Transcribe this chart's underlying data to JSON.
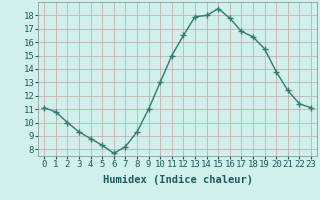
{
  "x": [
    0,
    1,
    2,
    3,
    4,
    5,
    6,
    7,
    8,
    9,
    10,
    11,
    12,
    13,
    14,
    15,
    16,
    17,
    18,
    19,
    20,
    21,
    22,
    23
  ],
  "y": [
    11.1,
    10.8,
    10.0,
    9.3,
    8.8,
    8.3,
    7.7,
    8.2,
    9.3,
    11.0,
    13.0,
    15.0,
    16.5,
    17.9,
    18.0,
    18.5,
    17.8,
    16.8,
    16.4,
    15.5,
    13.8,
    12.4,
    11.4,
    11.1
  ],
  "line_color": "#2e7d6e",
  "marker": "+",
  "bg_color": "#cff0eb",
  "grid_major_color": "#c9a0a0",
  "grid_minor_color": "#ddc0c0",
  "xlabel": "Humidex (Indice chaleur)",
  "ylim": [
    7.5,
    19.0
  ],
  "xlim": [
    -0.5,
    23.5
  ],
  "yticks": [
    8,
    9,
    10,
    11,
    12,
    13,
    14,
    15,
    16,
    17,
    18
  ],
  "xticks": [
    0,
    1,
    2,
    3,
    4,
    5,
    6,
    7,
    8,
    9,
    10,
    11,
    12,
    13,
    14,
    15,
    16,
    17,
    18,
    19,
    20,
    21,
    22,
    23
  ],
  "tick_label_fontsize": 6.5,
  "xlabel_fontsize": 7.5,
  "tick_color": "#1a5c5c",
  "label_color": "#1a5c5c"
}
